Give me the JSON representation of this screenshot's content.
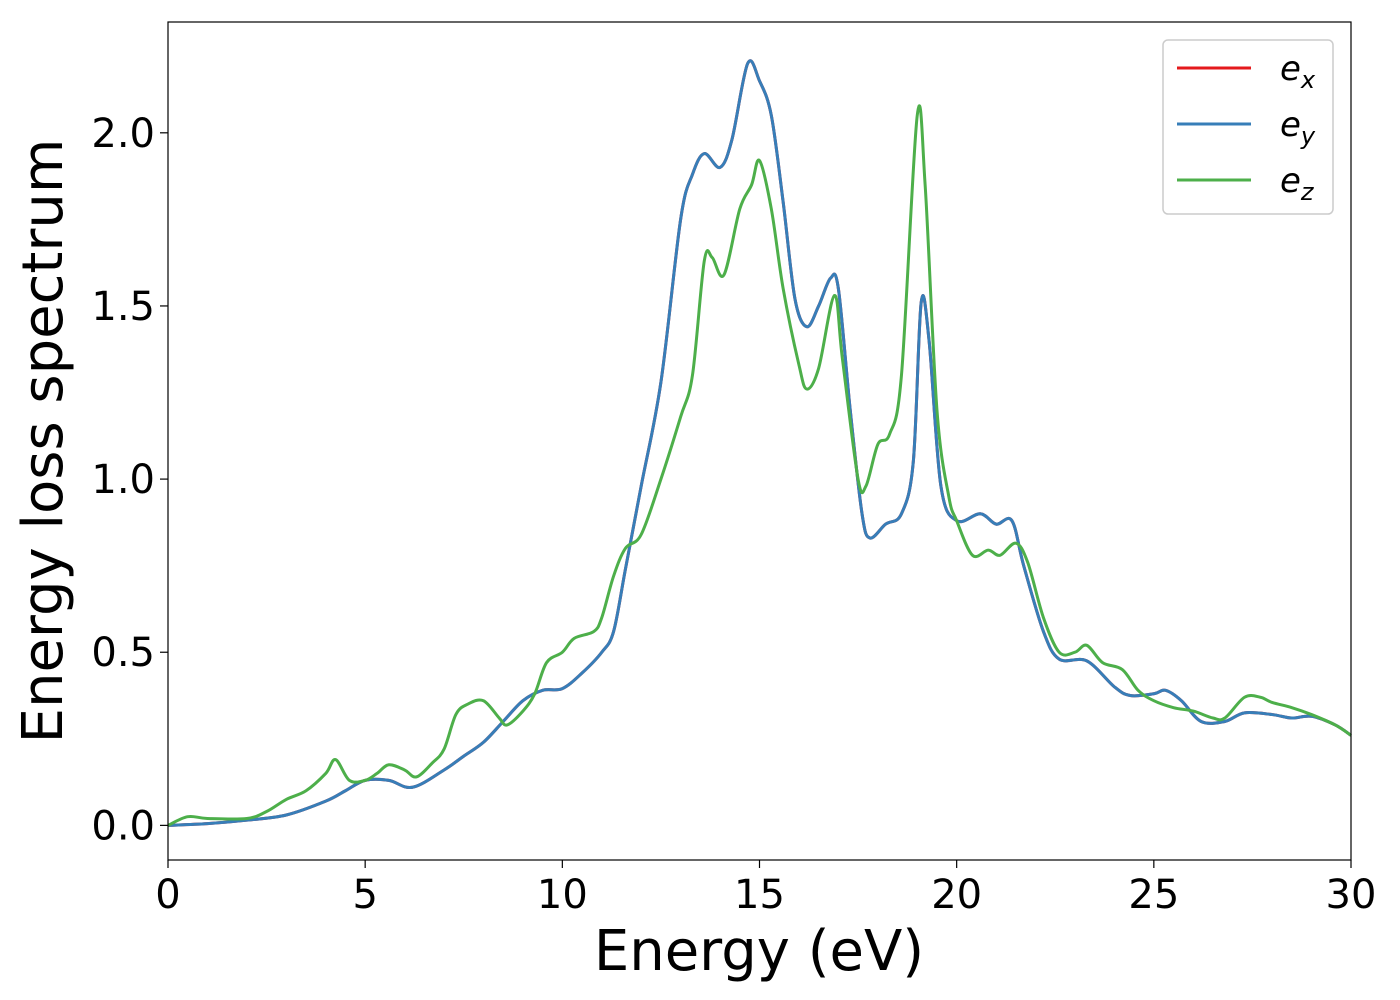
{
  "chart_data": {
    "type": "line",
    "title": "",
    "xlabel": "Energy (eV)",
    "ylabel": "Energy loss spectrum",
    "xlim": [
      0,
      30
    ],
    "ylim": [
      -0.1,
      2.32
    ],
    "xticks": [
      0,
      5,
      10,
      15,
      20,
      25,
      30
    ],
    "xtick_labels": [
      "0",
      "5",
      "10",
      "15",
      "20",
      "25",
      "30"
    ],
    "yticks": [
      0.0,
      0.5,
      1.0,
      1.5,
      2.0
    ],
    "ytick_labels": [
      "0.0",
      "0.5",
      "1.0",
      "1.5",
      "2.0"
    ],
    "grid": false,
    "legend_position": "top-right",
    "series": [
      {
        "name": "e_x",
        "label_base": "e",
        "label_sub": "x",
        "color": "#e41a1c",
        "points": [
          [
            0,
            0
          ],
          [
            1,
            0.005
          ],
          [
            2,
            0.015
          ],
          [
            3,
            0.03
          ],
          [
            4,
            0.07
          ],
          [
            4.5,
            0.1
          ],
          [
            5,
            0.13
          ],
          [
            5.6,
            0.13
          ],
          [
            6.2,
            0.11
          ],
          [
            7,
            0.16
          ],
          [
            7.5,
            0.2
          ],
          [
            8,
            0.24
          ],
          [
            8.5,
            0.3
          ],
          [
            9,
            0.36
          ],
          [
            9.5,
            0.39
          ],
          [
            10,
            0.395
          ],
          [
            10.5,
            0.44
          ],
          [
            11,
            0.5
          ],
          [
            11.3,
            0.56
          ],
          [
            11.6,
            0.74
          ],
          [
            12,
            0.98
          ],
          [
            12.5,
            1.28
          ],
          [
            13,
            1.75
          ],
          [
            13.3,
            1.88
          ],
          [
            13.6,
            1.94
          ],
          [
            14,
            1.9
          ],
          [
            14.3,
            1.98
          ],
          [
            14.7,
            2.2
          ],
          [
            15,
            2.15
          ],
          [
            15.3,
            2.05
          ],
          [
            15.6,
            1.8
          ],
          [
            15.9,
            1.52
          ],
          [
            16.2,
            1.44
          ],
          [
            16.5,
            1.5
          ],
          [
            16.8,
            1.58
          ],
          [
            17,
            1.55
          ],
          [
            17.3,
            1.2
          ],
          [
            17.6,
            0.9
          ],
          [
            17.8,
            0.83
          ],
          [
            18.2,
            0.87
          ],
          [
            18.6,
            0.9
          ],
          [
            18.9,
            1.05
          ],
          [
            19.1,
            1.51
          ],
          [
            19.3,
            1.4
          ],
          [
            19.6,
            0.98
          ],
          [
            20,
            0.88
          ],
          [
            20.6,
            0.9
          ],
          [
            21,
            0.87
          ],
          [
            21.4,
            0.88
          ],
          [
            21.7,
            0.75
          ],
          [
            22.2,
            0.56
          ],
          [
            22.6,
            0.48
          ],
          [
            23.3,
            0.475
          ],
          [
            24,
            0.4
          ],
          [
            24.4,
            0.375
          ],
          [
            25,
            0.38
          ],
          [
            25.3,
            0.39
          ],
          [
            25.7,
            0.36
          ],
          [
            26.2,
            0.3
          ],
          [
            26.8,
            0.3
          ],
          [
            27.3,
            0.325
          ],
          [
            28,
            0.32
          ],
          [
            28.5,
            0.31
          ],
          [
            29,
            0.315
          ],
          [
            29.6,
            0.29
          ],
          [
            30,
            0.26
          ]
        ]
      },
      {
        "name": "e_y",
        "label_base": "e",
        "label_sub": "y",
        "color": "#377eb8",
        "points": [
          [
            0,
            0
          ],
          [
            1,
            0.005
          ],
          [
            2,
            0.015
          ],
          [
            3,
            0.03
          ],
          [
            4,
            0.07
          ],
          [
            4.5,
            0.1
          ],
          [
            5,
            0.13
          ],
          [
            5.6,
            0.13
          ],
          [
            6.2,
            0.11
          ],
          [
            7,
            0.16
          ],
          [
            7.5,
            0.2
          ],
          [
            8,
            0.24
          ],
          [
            8.5,
            0.3
          ],
          [
            9,
            0.36
          ],
          [
            9.5,
            0.39
          ],
          [
            10,
            0.395
          ],
          [
            10.5,
            0.44
          ],
          [
            11,
            0.5
          ],
          [
            11.3,
            0.56
          ],
          [
            11.6,
            0.74
          ],
          [
            12,
            0.98
          ],
          [
            12.5,
            1.28
          ],
          [
            13,
            1.75
          ],
          [
            13.3,
            1.88
          ],
          [
            13.6,
            1.94
          ],
          [
            14,
            1.9
          ],
          [
            14.3,
            1.98
          ],
          [
            14.7,
            2.2
          ],
          [
            15,
            2.15
          ],
          [
            15.3,
            2.05
          ],
          [
            15.6,
            1.8
          ],
          [
            15.9,
            1.52
          ],
          [
            16.2,
            1.44
          ],
          [
            16.5,
            1.5
          ],
          [
            16.8,
            1.58
          ],
          [
            17,
            1.55
          ],
          [
            17.3,
            1.2
          ],
          [
            17.6,
            0.9
          ],
          [
            17.8,
            0.83
          ],
          [
            18.2,
            0.87
          ],
          [
            18.6,
            0.9
          ],
          [
            18.9,
            1.05
          ],
          [
            19.1,
            1.51
          ],
          [
            19.3,
            1.4
          ],
          [
            19.6,
            0.98
          ],
          [
            20,
            0.88
          ],
          [
            20.6,
            0.9
          ],
          [
            21,
            0.87
          ],
          [
            21.4,
            0.88
          ],
          [
            21.7,
            0.75
          ],
          [
            22.2,
            0.56
          ],
          [
            22.6,
            0.48
          ],
          [
            23.3,
            0.475
          ],
          [
            24,
            0.4
          ],
          [
            24.4,
            0.375
          ],
          [
            25,
            0.38
          ],
          [
            25.3,
            0.39
          ],
          [
            25.7,
            0.36
          ],
          [
            26.2,
            0.3
          ],
          [
            26.8,
            0.3
          ],
          [
            27.3,
            0.325
          ],
          [
            28,
            0.32
          ],
          [
            28.5,
            0.31
          ],
          [
            29,
            0.315
          ],
          [
            29.6,
            0.29
          ],
          [
            30,
            0.26
          ]
        ]
      },
      {
        "name": "e_z",
        "label_base": "e",
        "label_sub": "z",
        "color": "#4daf4a",
        "points": [
          [
            0,
            0
          ],
          [
            0.5,
            0.025
          ],
          [
            1,
            0.02
          ],
          [
            2,
            0.02
          ],
          [
            2.5,
            0.04
          ],
          [
            3,
            0.075
          ],
          [
            3.5,
            0.1
          ],
          [
            4,
            0.15
          ],
          [
            4.25,
            0.19
          ],
          [
            4.6,
            0.13
          ],
          [
            5,
            0.13
          ],
          [
            5.3,
            0.15
          ],
          [
            5.6,
            0.175
          ],
          [
            6,
            0.16
          ],
          [
            6.3,
            0.14
          ],
          [
            6.7,
            0.18
          ],
          [
            7,
            0.22
          ],
          [
            7.3,
            0.32
          ],
          [
            7.6,
            0.35
          ],
          [
            8,
            0.36
          ],
          [
            8.4,
            0.31
          ],
          [
            8.6,
            0.29
          ],
          [
            9,
            0.33
          ],
          [
            9.3,
            0.38
          ],
          [
            9.6,
            0.47
          ],
          [
            10,
            0.5
          ],
          [
            10.3,
            0.54
          ],
          [
            10.8,
            0.56
          ],
          [
            11,
            0.6
          ],
          [
            11.3,
            0.72
          ],
          [
            11.6,
            0.8
          ],
          [
            12,
            0.84
          ],
          [
            12.5,
            1.0
          ],
          [
            13,
            1.18
          ],
          [
            13.3,
            1.3
          ],
          [
            13.6,
            1.63
          ],
          [
            13.8,
            1.64
          ],
          [
            14.1,
            1.59
          ],
          [
            14.5,
            1.78
          ],
          [
            14.8,
            1.85
          ],
          [
            15,
            1.92
          ],
          [
            15.3,
            1.78
          ],
          [
            15.6,
            1.55
          ],
          [
            16,
            1.33
          ],
          [
            16.2,
            1.26
          ],
          [
            16.5,
            1.32
          ],
          [
            16.9,
            1.53
          ],
          [
            17.1,
            1.35
          ],
          [
            17.5,
            1.0
          ],
          [
            17.7,
            0.98
          ],
          [
            18,
            1.1
          ],
          [
            18.3,
            1.13
          ],
          [
            18.6,
            1.3
          ],
          [
            19,
            2.05
          ],
          [
            19.2,
            1.85
          ],
          [
            19.5,
            1.2
          ],
          [
            19.8,
            0.95
          ],
          [
            20,
            0.88
          ],
          [
            20.4,
            0.78
          ],
          [
            20.8,
            0.795
          ],
          [
            21.1,
            0.78
          ],
          [
            21.5,
            0.815
          ],
          [
            21.8,
            0.76
          ],
          [
            22.2,
            0.6
          ],
          [
            22.6,
            0.5
          ],
          [
            23,
            0.5
          ],
          [
            23.3,
            0.52
          ],
          [
            23.7,
            0.47
          ],
          [
            24.2,
            0.45
          ],
          [
            24.6,
            0.39
          ],
          [
            25,
            0.36
          ],
          [
            25.5,
            0.34
          ],
          [
            26,
            0.33
          ],
          [
            26.5,
            0.31
          ],
          [
            26.8,
            0.31
          ],
          [
            27.3,
            0.37
          ],
          [
            27.7,
            0.37
          ],
          [
            28,
            0.355
          ],
          [
            28.5,
            0.34
          ],
          [
            29,
            0.32
          ],
          [
            29.6,
            0.29
          ],
          [
            30,
            0.26
          ]
        ]
      }
    ]
  }
}
